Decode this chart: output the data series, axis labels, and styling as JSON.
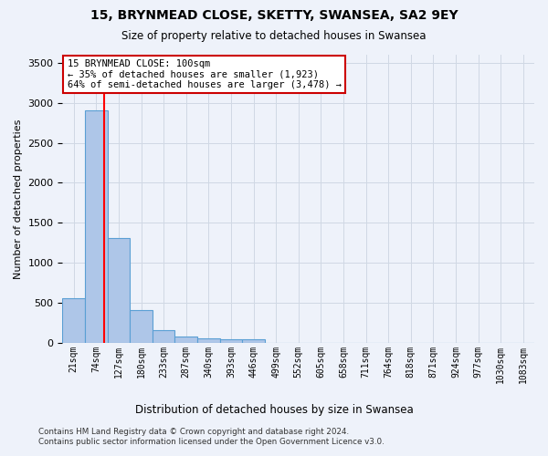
{
  "title": "15, BRYNMEAD CLOSE, SKETTY, SWANSEA, SA2 9EY",
  "subtitle": "Size of property relative to detached houses in Swansea",
  "xlabel": "Distribution of detached houses by size in Swansea",
  "ylabel": "Number of detached properties",
  "footnote1": "Contains HM Land Registry data © Crown copyright and database right 2024.",
  "footnote2": "Contains public sector information licensed under the Open Government Licence v3.0.",
  "bin_labels": [
    "21sqm",
    "74sqm",
    "127sqm",
    "180sqm",
    "233sqm",
    "287sqm",
    "340sqm",
    "393sqm",
    "446sqm",
    "499sqm",
    "552sqm",
    "605sqm",
    "658sqm",
    "711sqm",
    "764sqm",
    "818sqm",
    "871sqm",
    "924sqm",
    "977sqm",
    "1030sqm",
    "1083sqm"
  ],
  "bar_values": [
    560,
    2900,
    1310,
    410,
    155,
    80,
    55,
    50,
    45,
    0,
    0,
    0,
    0,
    0,
    0,
    0,
    0,
    0,
    0,
    0,
    0
  ],
  "bar_color": "#aec6e8",
  "bar_edge_color": "#5a9fd4",
  "grid_color": "#d0d8e4",
  "background_color": "#eef2fa",
  "property_label": "15 BRYNMEAD CLOSE: 100sqm",
  "pct_smaller": 35,
  "n_smaller": 1923,
  "pct_larger_semi": 64,
  "n_larger_semi": 3478,
  "red_line_bin": 1.35,
  "annotation_box_color": "#cc0000",
  "ylim": [
    0,
    3600
  ],
  "yticks": [
    0,
    500,
    1000,
    1500,
    2000,
    2500,
    3000,
    3500
  ]
}
